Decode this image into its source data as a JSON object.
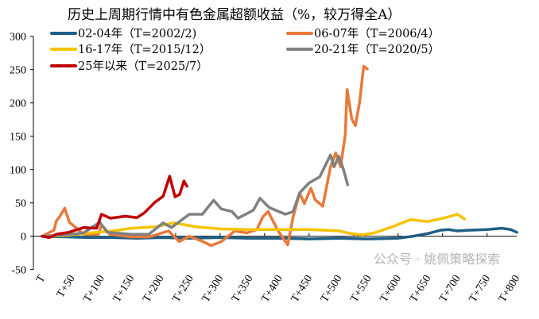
{
  "chart_data": {
    "type": "line",
    "title": "历史上周期行情中有色金属超额收益（%，较万得全A）",
    "xlabel": "",
    "ylabel": "",
    "ylim": [
      -50,
      300
    ],
    "yticks": [
      "-50",
      "0",
      "50",
      "100",
      "150",
      "200",
      "250",
      "300"
    ],
    "xlim": [
      0,
      800
    ],
    "xticks": [
      "T",
      "T+50",
      "T+100",
      "T+150",
      "T+200",
      "T+250",
      "T+300",
      "T+350",
      "T+400",
      "T+450",
      "T+500",
      "T+550",
      "T+600",
      "T+650",
      "T+700",
      "T+750",
      "T+800"
    ],
    "grid": false,
    "legend": "top",
    "series": [
      {
        "name": "02-04年（T=2002/2)",
        "color": "#1f5f86",
        "points": [
          [
            0,
            0
          ],
          [
            40,
            -1
          ],
          [
            80,
            -2
          ],
          [
            120,
            -2
          ],
          [
            160,
            -3
          ],
          [
            200,
            -2
          ],
          [
            250,
            -3
          ],
          [
            300,
            -2
          ],
          [
            350,
            -3
          ],
          [
            400,
            -3
          ],
          [
            450,
            -4
          ],
          [
            500,
            -3
          ],
          [
            550,
            -4
          ],
          [
            600,
            -3
          ],
          [
            625,
            0
          ],
          [
            650,
            4
          ],
          [
            672,
            9
          ],
          [
            685,
            10
          ],
          [
            700,
            8
          ],
          [
            720,
            9
          ],
          [
            750,
            10
          ],
          [
            775,
            12
          ],
          [
            790,
            10
          ],
          [
            800,
            6
          ]
        ]
      },
      {
        "name": "06-07年（T=2006/4）",
        "color": "#e8793a",
        "points": [
          [
            0,
            0
          ],
          [
            20,
            9
          ],
          [
            24,
            23
          ],
          [
            30,
            30
          ],
          [
            38,
            42
          ],
          [
            46,
            21
          ],
          [
            58,
            12
          ],
          [
            70,
            3
          ],
          [
            95,
            3
          ],
          [
            100,
            17
          ],
          [
            114,
            3
          ],
          [
            150,
            -1
          ],
          [
            180,
            -1
          ],
          [
            195,
            3
          ],
          [
            213,
            8
          ],
          [
            231,
            -8
          ],
          [
            248,
            0
          ],
          [
            271,
            -8
          ],
          [
            285,
            -14
          ],
          [
            302,
            -8
          ],
          [
            325,
            8
          ],
          [
            345,
            5
          ],
          [
            362,
            10
          ],
          [
            372,
            29
          ],
          [
            381,
            37
          ],
          [
            397,
            9
          ],
          [
            414,
            -13
          ],
          [
            423,
            29
          ],
          [
            434,
            65
          ],
          [
            442,
            49
          ],
          [
            453,
            72
          ],
          [
            460,
            55
          ],
          [
            473,
            45
          ],
          [
            486,
            104
          ],
          [
            495,
            125
          ],
          [
            503,
            104
          ],
          [
            511,
            152
          ],
          [
            514,
            220
          ],
          [
            522,
            176
          ],
          [
            528,
            166
          ],
          [
            535,
            200
          ],
          [
            542,
            255
          ],
          [
            548,
            251
          ]
        ]
      },
      {
        "name": "16-17年（T=2015/12）",
        "color": "#f5c400",
        "points": [
          [
            0,
            0
          ],
          [
            40,
            1
          ],
          [
            80,
            5
          ],
          [
            120,
            8
          ],
          [
            150,
            12
          ],
          [
            190,
            14
          ],
          [
            222,
            20
          ],
          [
            260,
            14
          ],
          [
            300,
            11
          ],
          [
            350,
            10
          ],
          [
            400,
            10
          ],
          [
            450,
            10
          ],
          [
            500,
            8
          ],
          [
            520,
            4
          ],
          [
            540,
            2
          ],
          [
            560,
            5
          ],
          [
            590,
            14
          ],
          [
            621,
            25
          ],
          [
            650,
            22
          ],
          [
            680,
            28
          ],
          [
            700,
            33
          ],
          [
            712,
            26
          ]
        ]
      },
      {
        "name": "20-21年（T=2020/5）",
        "color": "#808080",
        "points": [
          [
            0,
            0
          ],
          [
            40,
            2
          ],
          [
            70,
            5
          ],
          [
            97,
            21
          ],
          [
            110,
            6
          ],
          [
            150,
            3
          ],
          [
            180,
            3
          ],
          [
            204,
            20
          ],
          [
            218,
            13
          ],
          [
            248,
            33
          ],
          [
            270,
            33
          ],
          [
            289,
            54
          ],
          [
            302,
            41
          ],
          [
            320,
            37
          ],
          [
            330,
            27
          ],
          [
            356,
            39
          ],
          [
            367,
            57
          ],
          [
            383,
            43
          ],
          [
            410,
            33
          ],
          [
            423,
            37
          ],
          [
            434,
            65
          ],
          [
            450,
            80
          ],
          [
            468,
            89
          ],
          [
            486,
            122
          ],
          [
            492,
            104
          ],
          [
            500,
            120
          ],
          [
            508,
            100
          ],
          [
            515,
            77
          ]
        ]
      },
      {
        "name": "25年以来（T=2025/7）",
        "color": "#c00000",
        "points": [
          [
            0,
            0
          ],
          [
            12,
            -2
          ],
          [
            24,
            3
          ],
          [
            45,
            6
          ],
          [
            70,
            13
          ],
          [
            92,
            12
          ],
          [
            100,
            33
          ],
          [
            115,
            27
          ],
          [
            140,
            30
          ],
          [
            160,
            28
          ],
          [
            172,
            35
          ],
          [
            190,
            51
          ],
          [
            204,
            60
          ],
          [
            215,
            90
          ],
          [
            224,
            59
          ],
          [
            232,
            63
          ],
          [
            239,
            83
          ],
          [
            244,
            75
          ]
        ]
      }
    ]
  },
  "watermark": "公众号 · 姚佩策略探索"
}
